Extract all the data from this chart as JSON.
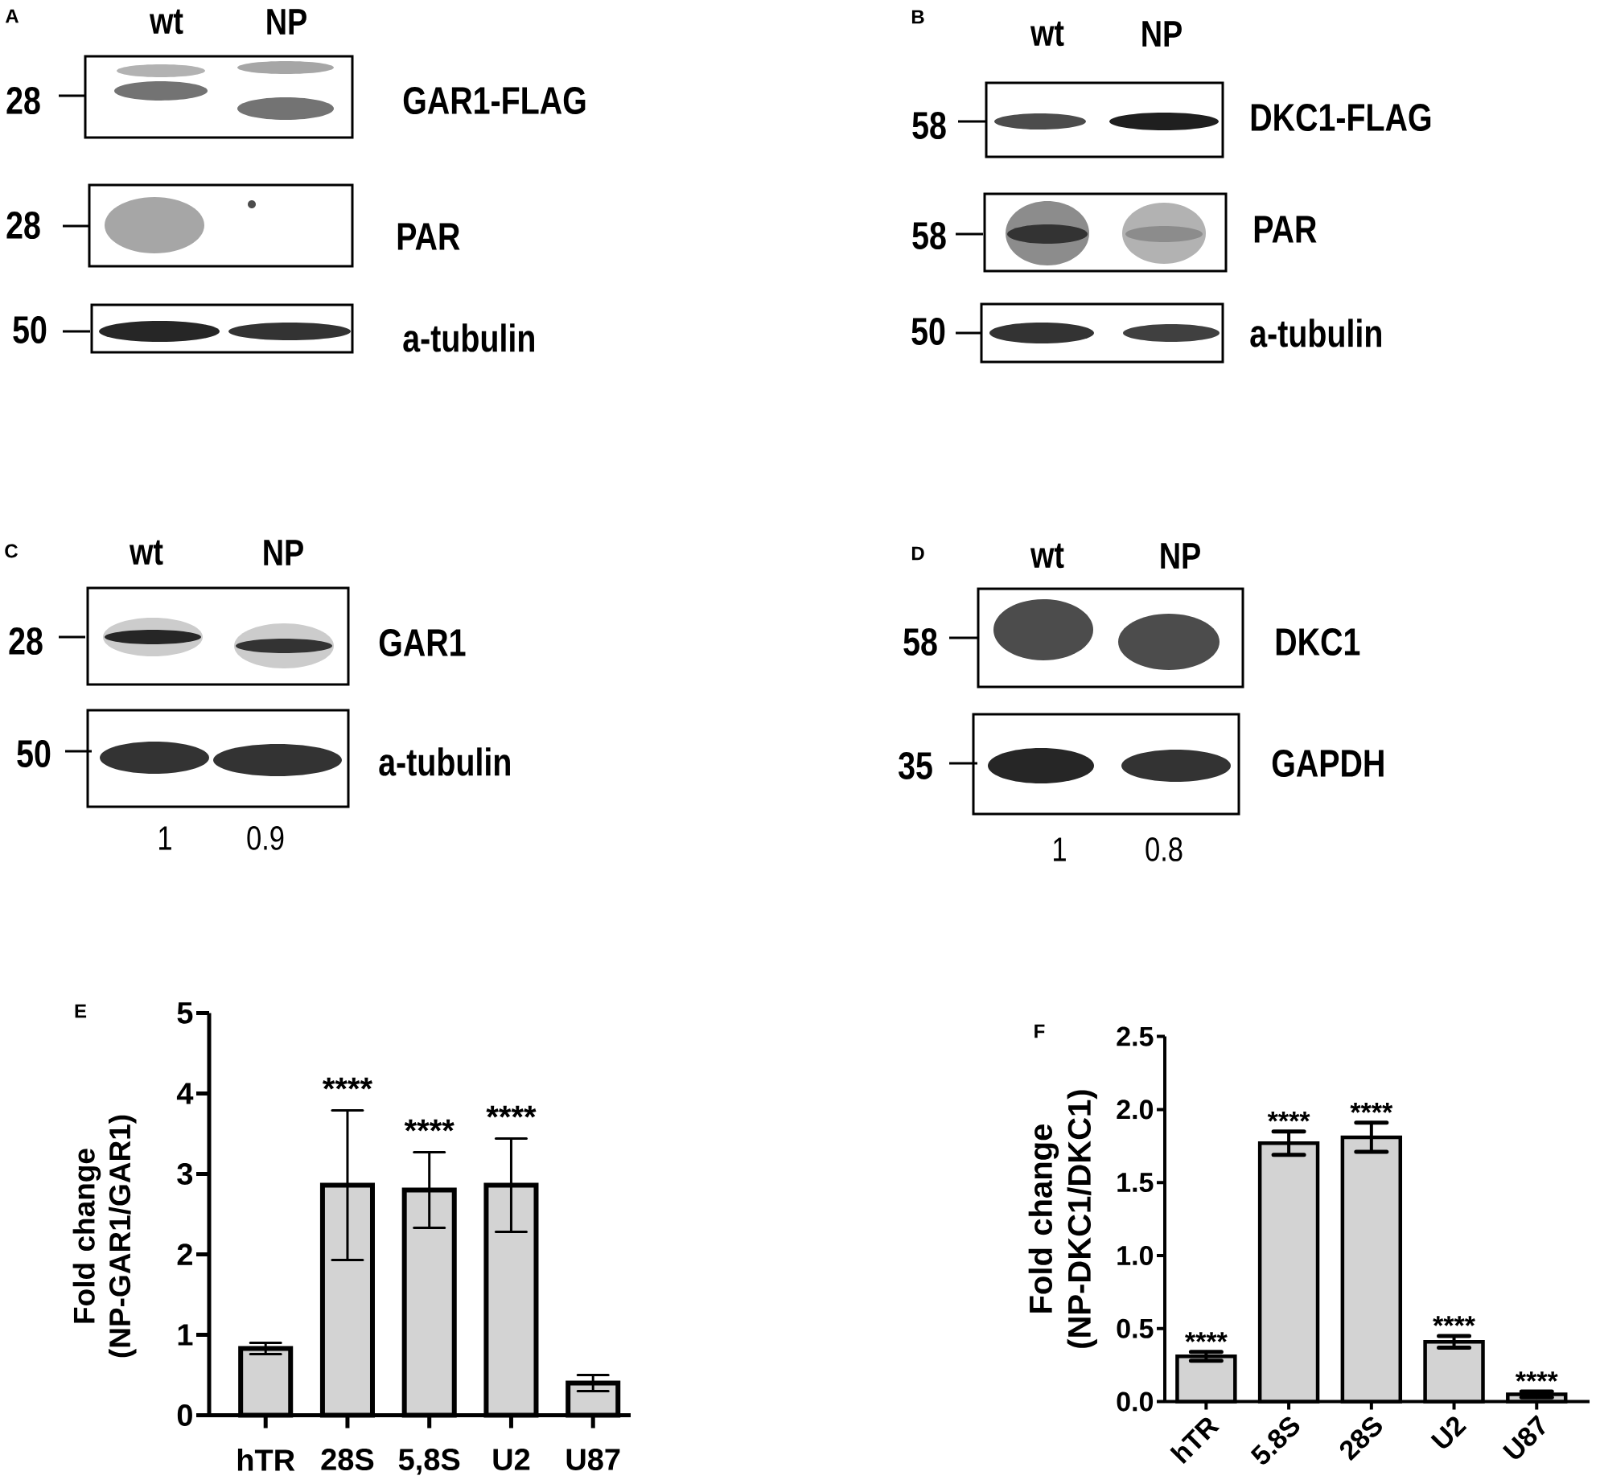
{
  "chart_data": [
    {
      "type": "other",
      "title": "A",
      "categories": [
        "wt",
        "NP"
      ],
      "y_categories": [
        "GAR1-FLAG",
        "PAR",
        "a-tubulin"
      ],
      "y2_categories": [
        "28",
        "28",
        "50"
      ]
    },
    {
      "type": "other",
      "title": "B",
      "categories": [
        "wt",
        "NP"
      ],
      "y_categories": [
        "DKC1-FLAG",
        "PAR",
        "a-tubulin"
      ],
      "y2_categories": [
        "58",
        "58",
        "50"
      ]
    },
    {
      "type": "other",
      "title": "C",
      "categories": [
        "wt",
        "NP"
      ],
      "y_categories": [
        "GAR1",
        "a-tubulin"
      ],
      "y2_categories": [
        "28",
        "50"
      ],
      "annotations": [
        "1",
        "0.9"
      ]
    },
    {
      "type": "other",
      "title": "D",
      "categories": [
        "wt",
        "NP"
      ],
      "y_categories": [
        "DKC1",
        "GAPDH"
      ],
      "y2_categories": [
        "58",
        "35"
      ],
      "annotations": [
        "1",
        "0.8"
      ]
    },
    {
      "type": "bar",
      "title": "E",
      "categories": [
        "hTR",
        "28S",
        "5,8S",
        "U2",
        "U87"
      ],
      "values": [
        0.83,
        2.86,
        2.8,
        2.86,
        0.4
      ],
      "errors": [
        0.07,
        0.93,
        0.47,
        0.58,
        0.1
      ],
      "color": "#d3d3d3",
      "ylabel": "Fold change (NP-GAR1/GAR1)",
      "ylim": [
        0,
        5
      ],
      "yticks": [
        0,
        1,
        2,
        3,
        4,
        5
      ],
      "annotations": [
        "****",
        "****",
        "****"
      ]
    },
    {
      "type": "bar",
      "title": "F",
      "categories": [
        "hTR",
        "5.8S",
        "28S",
        "U2",
        "U87"
      ],
      "values": [
        0.31,
        1.77,
        1.81,
        0.41,
        0.05
      ],
      "errors": [
        0.03,
        0.08,
        0.1,
        0.04,
        0.02
      ],
      "color": "#d3d3d3",
      "ylabel": "Fold change (NP-DKC1/DKC1)",
      "ylim": [
        0,
        2.5
      ],
      "yticks": [
        {
          "value": 0,
          "label": "0.0"
        },
        0.5,
        {
          "value": 1,
          "label": "1.0"
        },
        1.5,
        {
          "value": 2,
          "label": "2.0"
        },
        2.5
      ],
      "annotations": [
        "****",
        "****",
        "****",
        "****",
        "****"
      ]
    }
  ]
}
